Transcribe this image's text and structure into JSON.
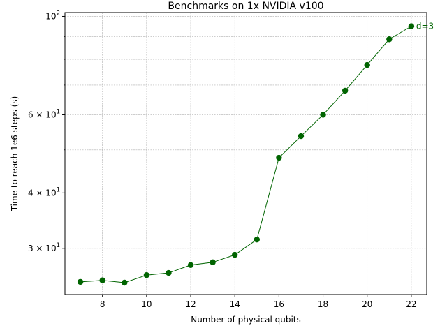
{
  "chart_data": {
    "type": "line",
    "title": "Benchmarks on 1x NVIDIA v100",
    "xlabel": "Number of physical qubits",
    "ylabel": "Time to reach 1e6 steps (s)",
    "y_scale": "log",
    "xlim": [
      6.3,
      22.7
    ],
    "ylim": [
      23.6,
      102
    ],
    "x_ticks": [
      8,
      10,
      12,
      14,
      16,
      18,
      20,
      22
    ],
    "x_tick_labels": [
      "8",
      "10",
      "12",
      "14",
      "16",
      "18",
      "20",
      "22"
    ],
    "y_major_ticks": [
      30,
      40,
      60,
      100
    ],
    "y_tick_labels": [
      {
        "mantissa": "3",
        "exponent": "1"
      },
      {
        "mantissa": "4",
        "exponent": "1"
      },
      {
        "mantissa": "6",
        "exponent": "1"
      },
      {
        "mantissa": "",
        "exponent": "2"
      }
    ],
    "y_minor_ticks": [
      50,
      70,
      80,
      90
    ],
    "grid": true,
    "color": "#006400",
    "series": [
      {
        "name": "d=3",
        "x": [
          7,
          8,
          9,
          10,
          11,
          12,
          13,
          14,
          15,
          16,
          17,
          18,
          19,
          20,
          21,
          22
        ],
        "y": [
          25.2,
          25.4,
          25.1,
          26.1,
          26.4,
          27.5,
          27.9,
          29.0,
          31.4,
          48.0,
          53.7,
          60.0,
          68.0,
          77.7,
          88.8,
          95.0
        ]
      }
    ]
  }
}
